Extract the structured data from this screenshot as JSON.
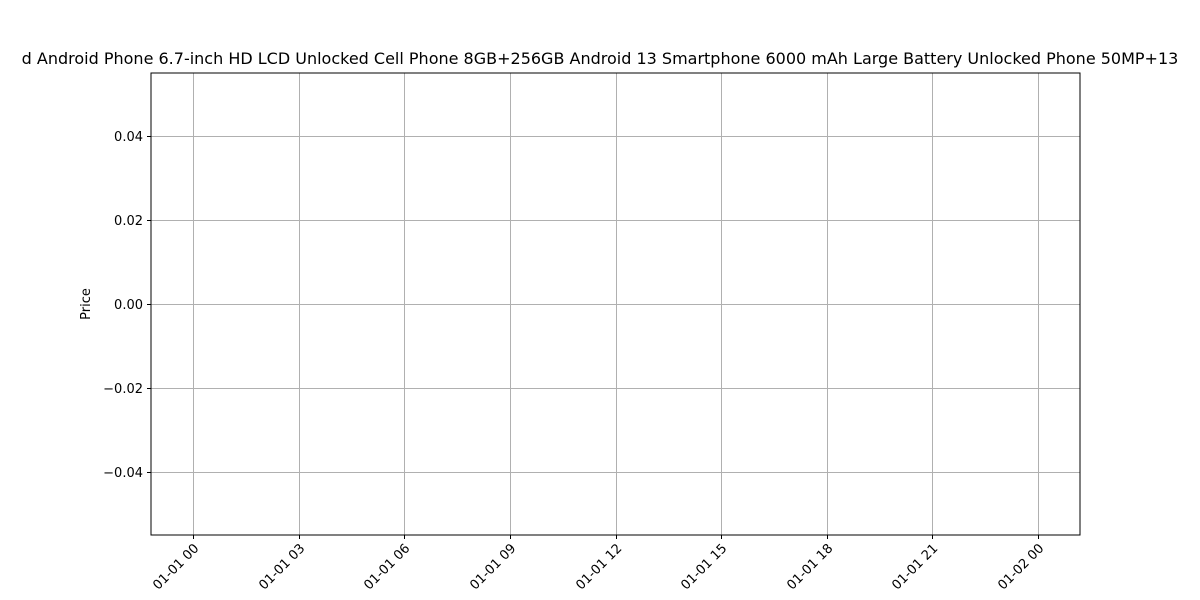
{
  "chart_data": {
    "type": "line",
    "title": "d Android Phone 6.7-inch HD LCD Unlocked Cell Phone 8GB+256GB Android 13 Smartphone 6000 mAh Large Battery Unlocked Phone 50MP+13",
    "xlabel": "",
    "ylabel": "Price",
    "x_tick_labels": [
      "01-01 00",
      "01-01 03",
      "01-01 06",
      "01-01 09",
      "01-01 12",
      "01-01 15",
      "01-01 18",
      "01-01 21",
      "01-02 00"
    ],
    "y_tick_labels": [
      "0.04",
      "0.02",
      "0.00",
      "−0.02",
      "−0.04"
    ],
    "y_tick_values": [
      0.04,
      0.02,
      0.0,
      -0.02,
      -0.04
    ],
    "ylim": [
      -0.055,
      0.055
    ],
    "x_tick_hours": [
      0,
      3,
      6,
      9,
      12,
      15,
      18,
      21,
      24
    ],
    "xlim_hours": [
      -1.2,
      25.2
    ],
    "grid": true,
    "series": [],
    "colors": {
      "grid": "#b0b0b0",
      "axes": "#000000",
      "background": "#ffffff"
    }
  }
}
